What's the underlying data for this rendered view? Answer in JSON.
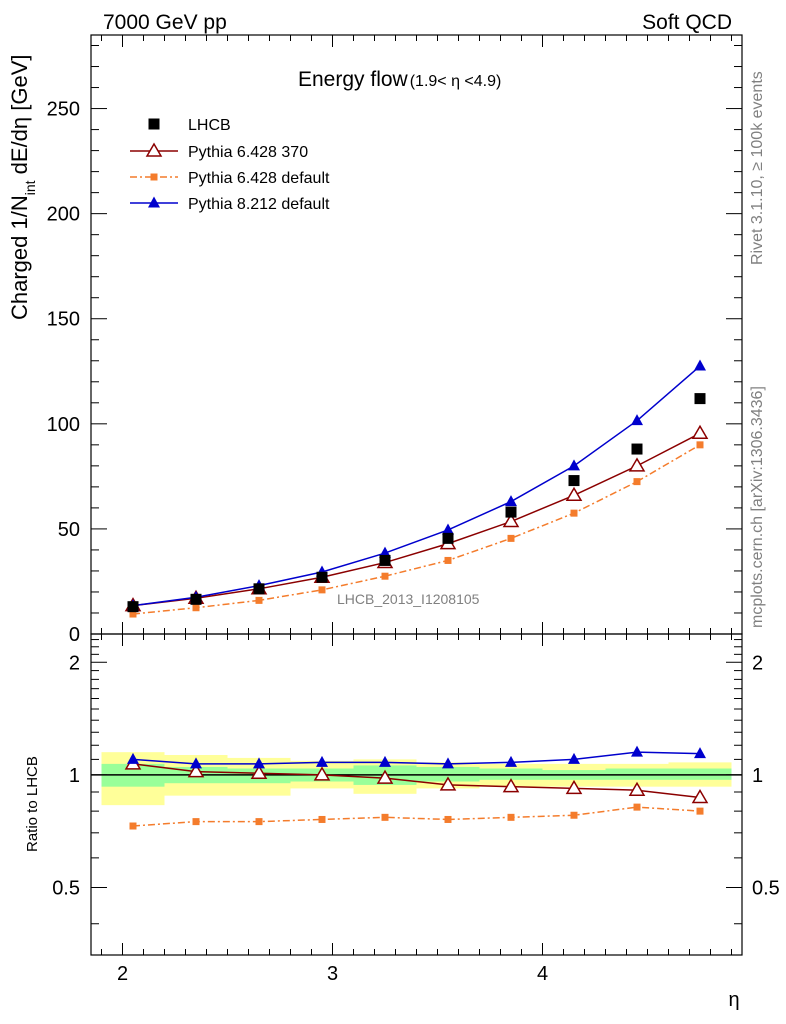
{
  "header": {
    "left": "7000 GeV pp",
    "right": "Soft QCD"
  },
  "side": {
    "rivet": "Rivet 3.1.10, ≥ 100k events",
    "mcplots": "mcplots.cern.ch [arXiv:1306.3436]"
  },
  "colors": {
    "lhcb": "#000000",
    "p370": "#8b0000",
    "pdef": "#f47c2c",
    "p8": "#0000cd",
    "band_yellow": "#ffff99",
    "band_green": "#99ff99"
  },
  "chart_data": {
    "type": "line",
    "title_main": "Energy flow",
    "title_sub": "(1.9< η <4.9)",
    "watermark": "LHCB_2013_I1208105",
    "ylabel_main": "Charged 1/N",
    "ylabel_sub": "int",
    "ylabel_tail": " dE/dη [GeV]",
    "ylabel_ratio": "Ratio to LHCB",
    "xlabel": "η",
    "xlim": [
      1.85,
      4.95
    ],
    "ylim": [
      0,
      285
    ],
    "ylim_ratio": [
      0.33,
      2.38
    ],
    "x_ticks": [
      "2",
      "3",
      "4"
    ],
    "y_ticks": [
      "0",
      "50",
      "100",
      "150",
      "200",
      "250"
    ],
    "ratio_ticks": [
      "0.5",
      "1",
      "2"
    ],
    "x": [
      2.05,
      2.35,
      2.65,
      2.95,
      3.25,
      3.55,
      3.85,
      4.15,
      4.45,
      4.75
    ],
    "bins": [
      [
        1.9,
        2.2
      ],
      [
        2.2,
        2.5
      ],
      [
        2.5,
        2.8
      ],
      [
        2.8,
        3.1
      ],
      [
        3.1,
        3.4
      ],
      [
        3.4,
        3.7
      ],
      [
        3.7,
        4.0
      ],
      [
        4.0,
        4.3
      ],
      [
        4.3,
        4.6
      ],
      [
        4.6,
        4.9
      ]
    ],
    "series": [
      {
        "name": "LHCB",
        "key": "lhcb",
        "values": [
          13,
          16.5,
          21.5,
          27,
          35,
          45.5,
          58,
          73,
          88,
          112
        ]
      },
      {
        "name": "Pythia 6.428 370",
        "key": "p370",
        "values": [
          13.5,
          17,
          21.5,
          27,
          34,
          43,
          53.5,
          66,
          80,
          95.5
        ]
      },
      {
        "name": "Pythia 6.428 default",
        "key": "pdef",
        "values": [
          9.5,
          12.5,
          16,
          21,
          27.5,
          35,
          45.5,
          57.5,
          72.5,
          90
        ]
      },
      {
        "name": "Pythia 8.212 default",
        "key": "p8",
        "values": [
          13.5,
          17.5,
          23,
          29.5,
          38.5,
          49.5,
          63,
          80,
          101.5,
          127.5
        ]
      }
    ],
    "ratios": {
      "p370": [
        1.07,
        1.02,
        1.01,
        1.0,
        0.98,
        0.94,
        0.93,
        0.92,
        0.91,
        0.87
      ],
      "pdef": [
        0.73,
        0.75,
        0.75,
        0.76,
        0.77,
        0.76,
        0.77,
        0.78,
        0.82,
        0.8
      ],
      "p8": [
        1.1,
        1.07,
        1.07,
        1.08,
        1.08,
        1.07,
        1.08,
        1.1,
        1.15,
        1.14
      ]
    },
    "band_green": [
      [
        0.93,
        1.07
      ],
      [
        0.95,
        1.05
      ],
      [
        0.95,
        1.04
      ],
      [
        0.96,
        1.04
      ],
      [
        0.94,
        1.06
      ],
      [
        0.96,
        1.05
      ],
      [
        0.97,
        1.04
      ],
      [
        0.97,
        1.03
      ],
      [
        0.97,
        1.04
      ],
      [
        0.97,
        1.04
      ]
    ],
    "band_yellow": [
      [
        0.83,
        1.15
      ],
      [
        0.88,
        1.13
      ],
      [
        0.88,
        1.11
      ],
      [
        0.92,
        1.09
      ],
      [
        0.89,
        1.1
      ],
      [
        0.92,
        1.08
      ],
      [
        0.93,
        1.07
      ],
      [
        0.93,
        1.07
      ],
      [
        0.93,
        1.07
      ],
      [
        0.93,
        1.08
      ]
    ]
  }
}
